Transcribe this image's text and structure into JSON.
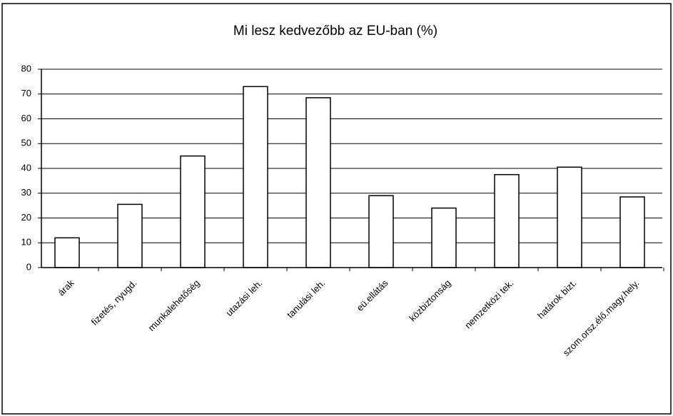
{
  "chart_data": {
    "type": "bar",
    "title": "Mi lesz kedvezőbb az EU-ban (%)",
    "categories": [
      "árak",
      "fizetés, nyugd.",
      "munkalehetőség",
      "utazási leh.",
      "tanulási leh.",
      "eü.ellátás",
      "közbiztonság",
      "nemzetközi tek.",
      "határok bizt.",
      "szom.orsz.élő.magy.hely."
    ],
    "values": [
      12,
      25.5,
      45,
      73,
      68.5,
      29,
      24,
      37.5,
      40.5,
      28.5
    ],
    "color": "#ffffff",
    "ylim": [
      0,
      80
    ],
    "yticks": [
      0,
      10,
      20,
      30,
      40,
      50,
      60,
      70,
      80
    ],
    "grid": true
  }
}
